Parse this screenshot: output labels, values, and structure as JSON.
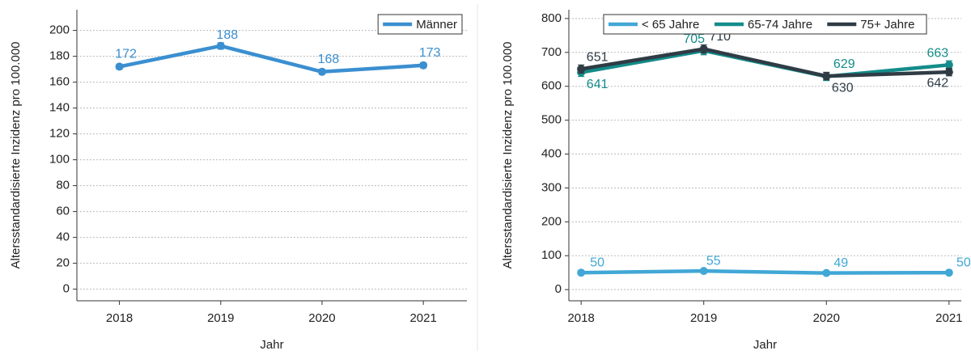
{
  "chart_data": [
    {
      "type": "line",
      "ylabel": "Altersstandardisierte Inzidenz pro 100.000",
      "xlabel": "Jahr",
      "x": [
        2018,
        2019,
        2020,
        2021
      ],
      "xlim": [
        2017.58,
        2021.43
      ],
      "xticks": [
        2018,
        2019,
        2020,
        2021
      ],
      "ylim": [
        -9,
        216
      ],
      "yticks": [
        0,
        20,
        40,
        60,
        80,
        100,
        120,
        140,
        160,
        180,
        200
      ],
      "grid": true,
      "legend": "top-right",
      "series": [
        {
          "name": "Männer",
          "color": "#3a8fd0",
          "values": [
            172,
            188,
            168,
            173
          ],
          "errors": [
            2,
            2.5,
            2,
            2
          ]
        }
      ]
    },
    {
      "type": "line",
      "ylabel": "Altersstandardisierte Inzidenz pro 100.000",
      "xlabel": "Jahr",
      "x": [
        2018,
        2019,
        2020,
        2021
      ],
      "xlim": [
        2017.9,
        2021.1
      ],
      "xticks": [
        2018,
        2019,
        2020,
        2021
      ],
      "ylim": [
        -33,
        826
      ],
      "yticks": [
        0,
        100,
        200,
        300,
        400,
        500,
        600,
        700,
        800
      ],
      "grid": true,
      "legend": "top",
      "series": [
        {
          "name": "< 65 Jahre",
          "color": "#41a7d6",
          "values": [
            50,
            55,
            49,
            50
          ],
          "errors": [
            1,
            1,
            1,
            1
          ]
        },
        {
          "name": "65-74 Jahre",
          "color": "#138c8a",
          "values": [
            641,
            705,
            629,
            663
          ],
          "errors": [
            12,
            12,
            12,
            12
          ]
        },
        {
          "name": "75+ Jahre",
          "color": "#2f3b45",
          "values": [
            651,
            710,
            630,
            642
          ],
          "errors": [
            12,
            12,
            11,
            11
          ]
        }
      ]
    }
  ]
}
